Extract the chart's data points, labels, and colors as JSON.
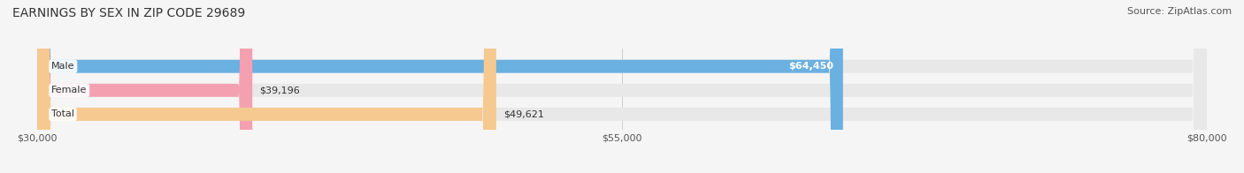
{
  "title": "EARNINGS BY SEX IN ZIP CODE 29689",
  "source": "Source: ZipAtlas.com",
  "categories": [
    "Male",
    "Female",
    "Total"
  ],
  "values": [
    64450,
    39196,
    49621
  ],
  "labels": [
    "$64,450",
    "$39,196",
    "$49,621"
  ],
  "bar_colors": [
    "#6ab0e0",
    "#f4a0b0",
    "#f5c990"
  ],
  "bar_background_color": "#e8e8e8",
  "xmin": 30000,
  "xmax": 80000,
  "xticks": [
    30000,
    55000,
    80000
  ],
  "xtick_labels": [
    "$30,000",
    "$55,000",
    "$80,000"
  ],
  "figsize": [
    14.06,
    1.96
  ],
  "dpi": 100,
  "title_fontsize": 10,
  "source_fontsize": 8,
  "bar_label_fontsize": 8,
  "category_fontsize": 8,
  "tick_fontsize": 8,
  "bar_height": 0.55,
  "background_color": "#f5f5f5"
}
